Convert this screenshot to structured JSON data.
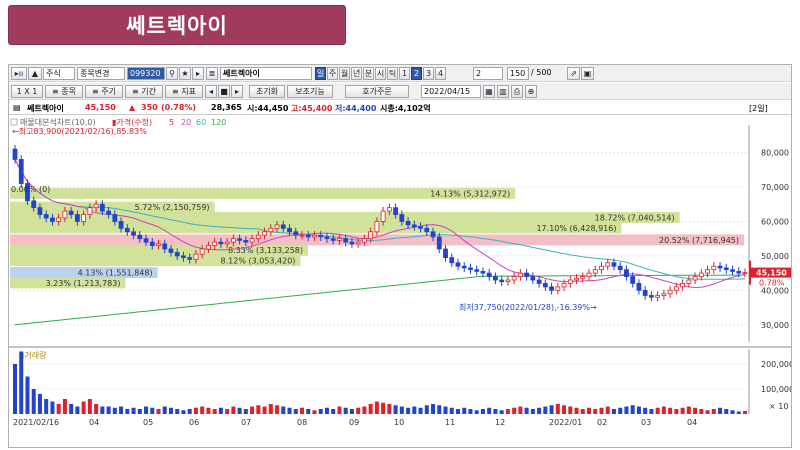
{
  "page_title": "쎄트렉아이",
  "toolbar1": {
    "nav_buttons": [
      "▸ıı",
      "▲"
    ],
    "market_type": "주식",
    "stock_change": "종목변경",
    "stock_code": "099320",
    "stock_name": "쎄트렉아이",
    "period_tabs": [
      "일",
      "주",
      "월",
      "년",
      "분",
      "시",
      "틱",
      "1",
      "2",
      "3",
      "4"
    ],
    "active_period": "일",
    "active_num": "2",
    "interval_value": "2",
    "count_value": "150",
    "count_max": "/ 500"
  },
  "toolbar2": {
    "buttons": [
      "1 X 1",
      "≡ 종목",
      "≡ 주기",
      "≡ 기간",
      "≡ 지표",
      "초기화",
      "보조기능",
      "호가주문"
    ],
    "date": "2022/04/15"
  },
  "quote": {
    "name": "쎄트렉아이",
    "price": "45,150",
    "arrow": "▲",
    "change": "350",
    "change_pct": "(0.78%)",
    "volume": "28,365",
    "open": "시:44,450",
    "high": "고:45,400",
    "low": "저:44,400",
    "market_cap": "시총:4,102억",
    "panel_label": "[2일]"
  },
  "legend": {
    "indicator": "매물대분석차트(10,0)",
    "price": "가격(수정)",
    "ma5": "5",
    "ma20": "20",
    "ma60": "60",
    "ma120": "120",
    "max_note": "최고83,900(2021/02/16),85.83%",
    "min_note": "최저37,750(2022/01/28),-16.39%",
    "volume_label": "거래량",
    "zero_note": "0.00% (0)"
  },
  "colors": {
    "up": "#e0202a",
    "down": "#2244cc",
    "profile_green": "#cfe096",
    "profile_pink": "#f2bcc2",
    "profile_blue": "#b6d0ec",
    "ma5": "#e0202a",
    "ma20": "#d040c0",
    "ma60": "#3cb0c0",
    "ma120": "#2fae4a"
  },
  "chart_data": {
    "type": "candlestick",
    "x_ticks": [
      "2021/02/16",
      "04",
      "05",
      "06",
      "07",
      "08",
      "09",
      "10",
      "11",
      "12",
      "2022/01",
      "02",
      "03",
      "04"
    ],
    "price_axis": [
      80000,
      70000,
      60000,
      50000,
      40000,
      30000
    ],
    "price_axis_labels": [
      "80,000",
      "70,000",
      "60,000",
      "50,000",
      "40,000",
      "30,000"
    ],
    "volume_axis_labels": [
      "200,000",
      "100,000",
      "× 10"
    ],
    "current_price_label": "45,150",
    "current_change_label": "0.78%",
    "volume_profile": [
      {
        "price": 68000,
        "pct": "14.13%",
        "vol": "(5,312,972)",
        "kind": "green",
        "frac": 0.6883
      },
      {
        "price": 64000,
        "pct": "5.72%",
        "vol": "(2,150,759)",
        "kind": "green",
        "frac": 0.2787
      },
      {
        "price": 61000,
        "pct": "18.72%",
        "vol": "(7,040,514)",
        "kind": "green",
        "frac": 0.9123
      },
      {
        "price": 58000,
        "pct": "17.10%",
        "vol": "(6,428,916)",
        "kind": "green",
        "frac": 0.8331
      },
      {
        "price": 54500,
        "pct": "20.52%",
        "vol": "(7,716,945)",
        "kind": "pink",
        "frac": 1.0
      },
      {
        "price": 51500,
        "pct": "8.33%",
        "vol": "(3,133,258)",
        "kind": "green",
        "frac": 0.406
      },
      {
        "price": 48500,
        "pct": "8.12%",
        "vol": "(3,053,420)",
        "kind": "green",
        "frac": 0.3957
      },
      {
        "price": 45000,
        "pct": "4.13%",
        "vol": "(1,551,848)",
        "kind": "blue",
        "frac": 0.2011
      },
      {
        "price": 42000,
        "pct": "3.23%",
        "vol": "(1,213,783)",
        "kind": "green",
        "frac": 0.1573
      }
    ],
    "close": [
      78000,
      71000,
      66000,
      64000,
      62000,
      61000,
      60000,
      61000,
      63000,
      62000,
      60000,
      62000,
      64000,
      65000,
      63000,
      62000,
      60000,
      58000,
      57000,
      56000,
      55000,
      54000,
      53000,
      53500,
      52000,
      51000,
      50000,
      49500,
      49000,
      50500,
      52000,
      53000,
      54000,
      53500,
      54000,
      55000,
      54500,
      54000,
      55000,
      56000,
      57000,
      58000,
      59000,
      58000,
      57000,
      56000,
      56000,
      55500,
      56000,
      55500,
      55000,
      54500,
      55000,
      54000,
      53500,
      54000,
      55000,
      57000,
      60000,
      63000,
      64000,
      62000,
      60000,
      59000,
      58500,
      58000,
      57000,
      55500,
      52000,
      49500,
      48000,
      47000,
      46500,
      46000,
      45500,
      45000,
      44000,
      43000,
      42500,
      43000,
      44000,
      45000,
      44000,
      43000,
      42000,
      41000,
      40000,
      41000,
      42000,
      43000,
      43500,
      44000,
      45000,
      46000,
      47000,
      48000,
      47000,
      46000,
      44000,
      42000,
      40000,
      38500,
      38000,
      38500,
      39000,
      40000,
      41000,
      42000,
      43000,
      44000,
      45000,
      46000,
      47000,
      46500,
      46000,
      45500,
      45000,
      45150
    ],
    "volume": [
      200000,
      250000,
      150000,
      100000,
      80000,
      60000,
      50000,
      40000,
      60000,
      40000,
      30000,
      50000,
      60000,
      40000,
      30000,
      30000,
      25000,
      30000,
      20000,
      25000,
      20000,
      30000,
      25000,
      20000,
      30000,
      25000,
      20000,
      15000,
      20000,
      25000,
      30000,
      25000,
      20000,
      25000,
      20000,
      30000,
      25000,
      20000,
      30000,
      35000,
      30000,
      40000,
      35000,
      30000,
      25000,
      20000,
      25000,
      20000,
      15000,
      20000,
      25000,
      20000,
      30000,
      25000,
      20000,
      25000,
      30000,
      40000,
      50000,
      45000,
      40000,
      35000,
      30000,
      25000,
      30000,
      25000,
      35000,
      40000,
      35000,
      30000,
      25000,
      20000,
      25000,
      20000,
      15000,
      20000,
      25000,
      20000,
      15000,
      20000,
      25000,
      30000,
      25000,
      20000,
      25000,
      30000,
      35000,
      40000,
      35000,
      30000,
      25000,
      20000,
      25000,
      20000,
      25000,
      30000,
      20000,
      25000,
      30000,
      35000,
      30000,
      25000,
      20000,
      25000,
      30000,
      25000,
      20000,
      25000,
      30000,
      25000,
      20000,
      15000,
      20000,
      25000,
      20000,
      15000,
      10000,
      12000
    ]
  }
}
